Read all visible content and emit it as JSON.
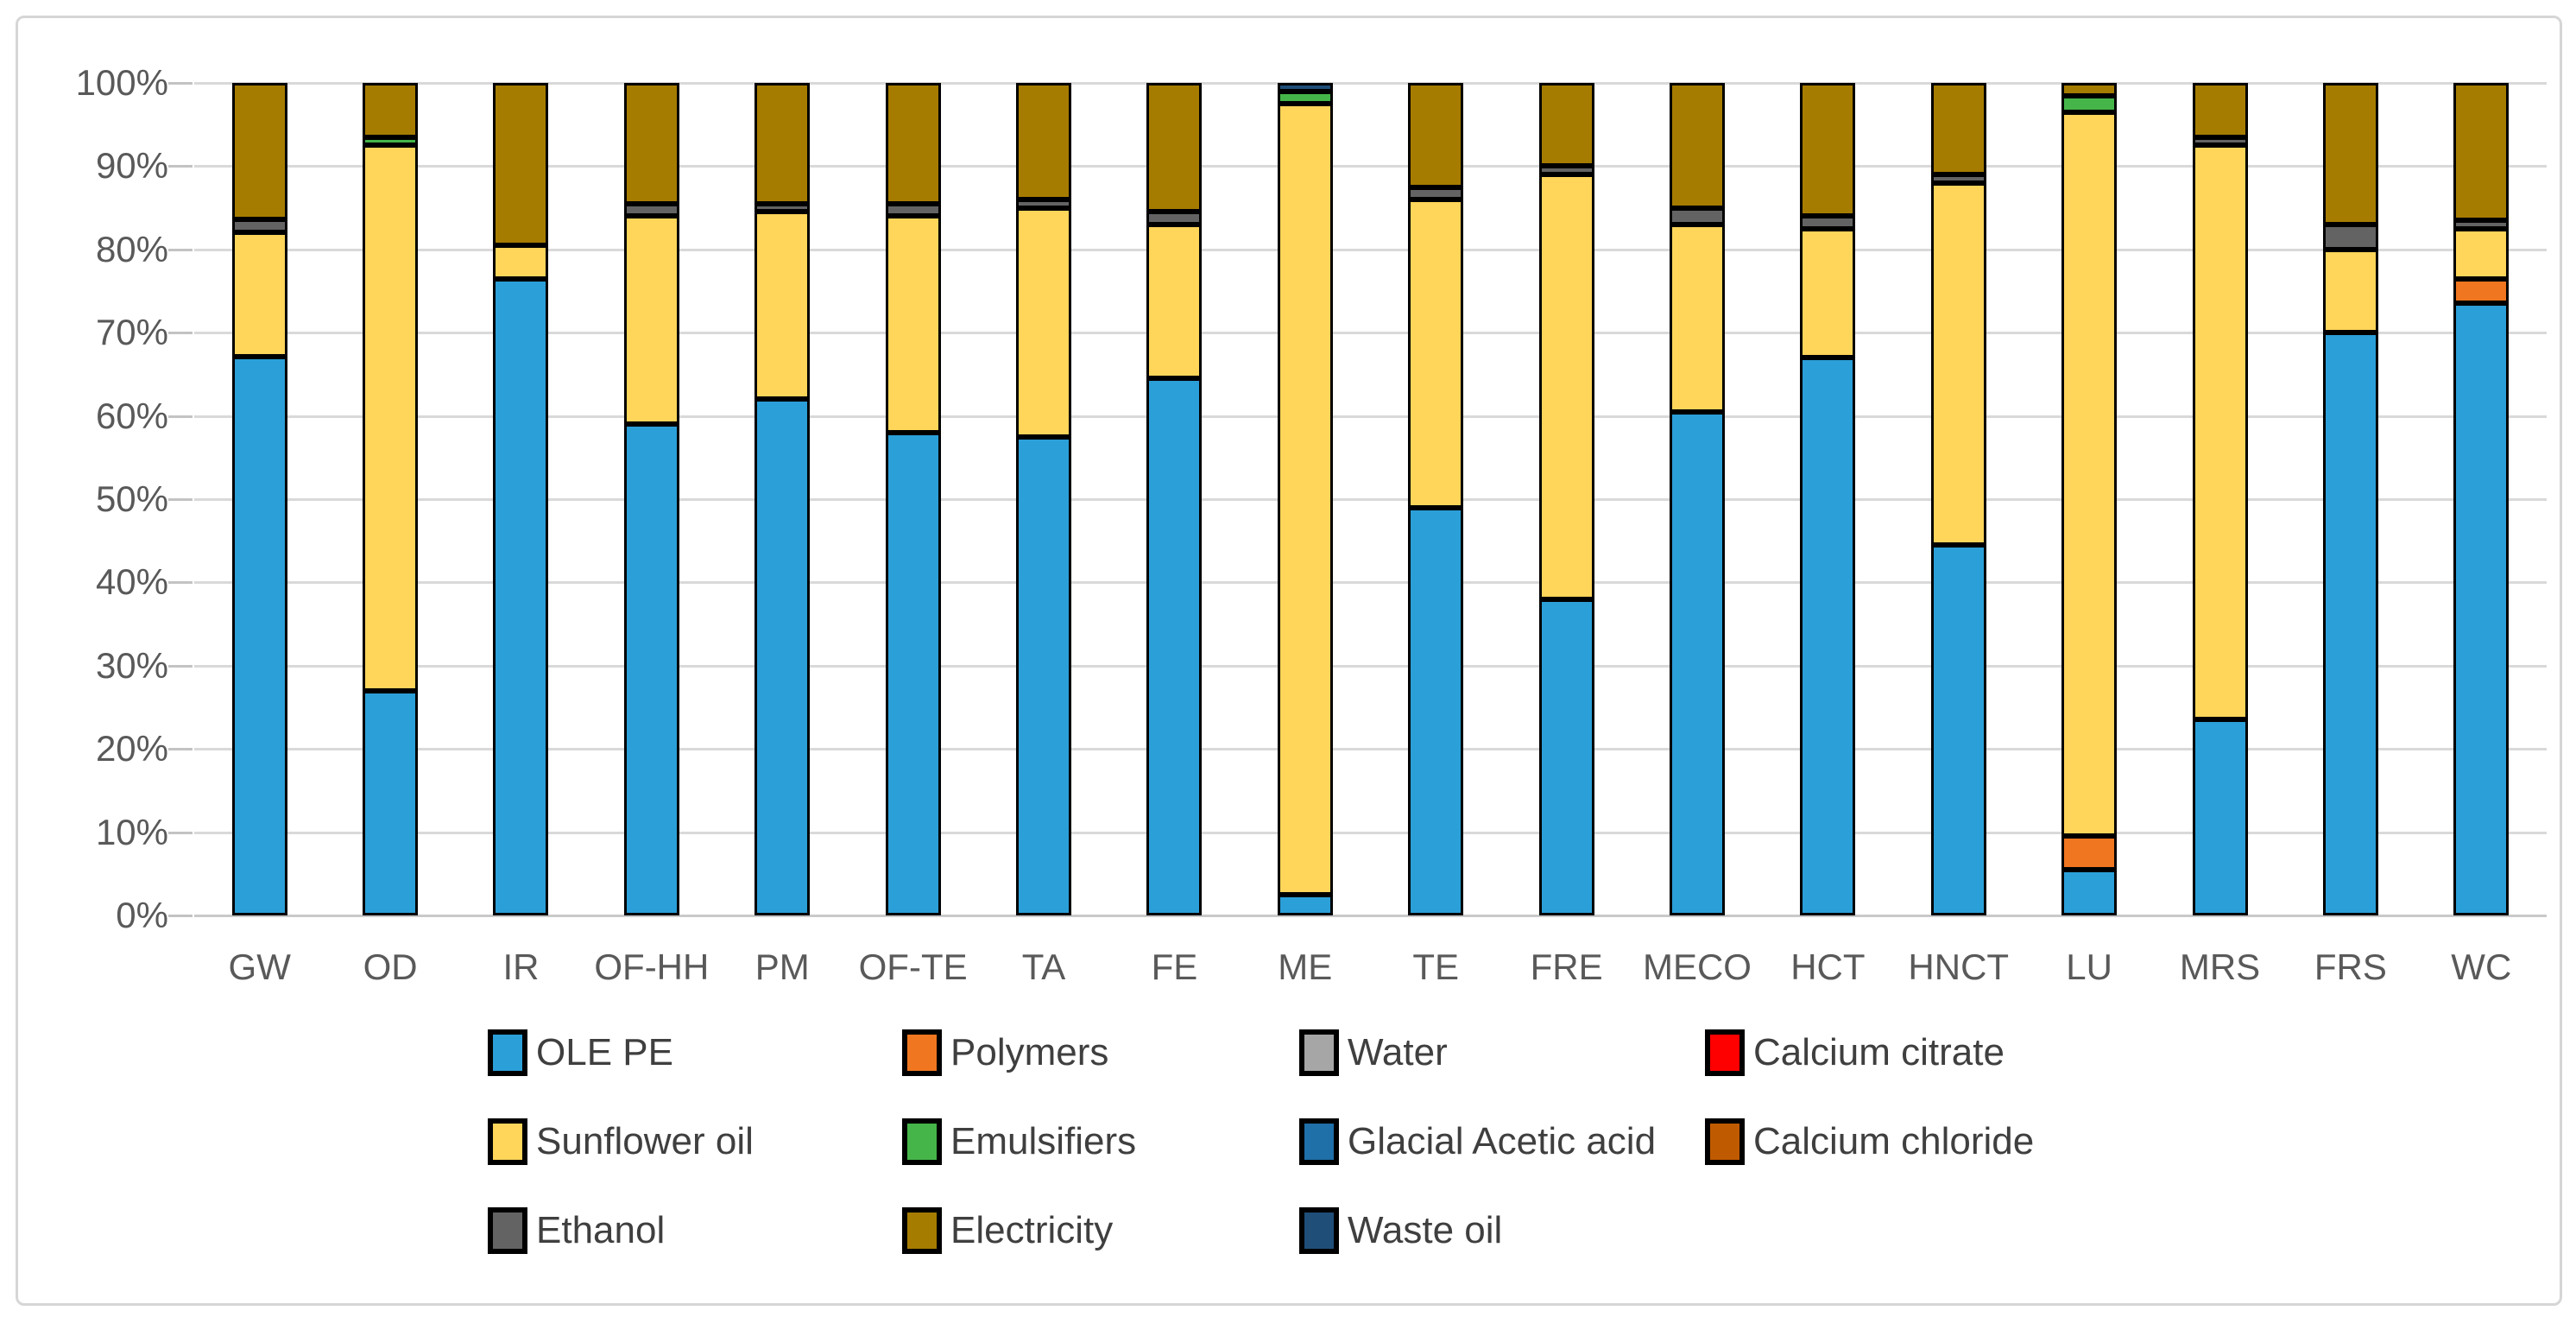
{
  "chart_data": {
    "type": "bar",
    "stacked": true,
    "stacked_100_percent": true,
    "title": "",
    "xlabel": "",
    "ylabel": "",
    "ylim": [
      0,
      100
    ],
    "y_tick_labels": [
      "0%",
      "10%",
      "20%",
      "30%",
      "40%",
      "50%",
      "60%",
      "70%",
      "80%",
      "90%",
      "100%"
    ],
    "grid": true,
    "legend_position": "bottom",
    "categories": [
      "GW",
      "OD",
      "IR",
      "OF-HH",
      "PM",
      "OF-TE",
      "TA",
      "FE",
      "ME",
      "TE",
      "FRE",
      "MECO",
      "HCT",
      "HNCT",
      "LU",
      "MRS",
      "FRS",
      "WC"
    ],
    "series": [
      {
        "name": "OLE PE",
        "color": "#2B9FD8",
        "values": [
          67.5,
          27,
          76.5,
          59,
          62,
          58,
          57.5,
          64.5,
          2.5,
          49,
          38,
          60.5,
          67,
          44.5,
          5.5,
          23.5,
          70,
          73.5
        ]
      },
      {
        "name": "Polymers",
        "color": "#F0761F",
        "values": [
          0,
          0,
          0,
          0,
          0,
          0,
          0,
          0,
          0,
          0,
          0,
          0,
          0,
          0,
          4,
          0,
          0,
          3
        ]
      },
      {
        "name": "Water",
        "color": "#A6A6A6",
        "values": [
          0,
          0,
          0,
          0,
          0,
          0,
          0,
          0,
          0,
          0,
          0,
          0,
          0,
          0,
          0,
          0,
          0,
          0
        ]
      },
      {
        "name": "Calcium citrate",
        "color": "#FF0000",
        "values": [
          0,
          0,
          0,
          0,
          0,
          0,
          0,
          0,
          0,
          0,
          0,
          0,
          0,
          0,
          0,
          0,
          0,
          0
        ]
      },
      {
        "name": "Sunflower oil",
        "color": "#FFD55A",
        "values": [
          15,
          65.5,
          4,
          25,
          22.5,
          26,
          27.5,
          18.5,
          95,
          37,
          51,
          22.5,
          15.5,
          43.5,
          87,
          69,
          10,
          6
        ]
      },
      {
        "name": "Emulsifiers",
        "color": "#45B549",
        "values": [
          0,
          1,
          0,
          0,
          0,
          0,
          0,
          0,
          1.5,
          0,
          0,
          0,
          0,
          0,
          2,
          0,
          0,
          0
        ]
      },
      {
        "name": "Glacial Acetic acid",
        "color": "#1F6FA8",
        "values": [
          0,
          0,
          0,
          0,
          0,
          0,
          0,
          0,
          0,
          0,
          0,
          0,
          0,
          0,
          0,
          0,
          0,
          0
        ]
      },
      {
        "name": "Calcium chloride",
        "color": "#C05A00",
        "values": [
          0,
          0,
          0,
          0,
          0,
          0,
          0,
          0,
          0,
          0,
          0,
          0,
          0,
          0,
          0,
          0,
          0,
          0
        ]
      },
      {
        "name": "Ethanol",
        "color": "#636363",
        "values": [
          1.5,
          0,
          0,
          1.5,
          1,
          1.5,
          1,
          1.5,
          0,
          1.5,
          1,
          2,
          1.5,
          1,
          0,
          1,
          3,
          1
        ]
      },
      {
        "name": "Electricity",
        "color": "#A67C00",
        "values": [
          16.5,
          6.5,
          19.5,
          14.5,
          14.5,
          14.5,
          14,
          15.5,
          0,
          12.5,
          10,
          15,
          16,
          11,
          1.5,
          6.5,
          17,
          16.5
        ]
      },
      {
        "name": "Waste oil",
        "color": "#1F4E79",
        "values": [
          0,
          0,
          0,
          0,
          0,
          0,
          0,
          0,
          1,
          0,
          0,
          0,
          0,
          0,
          0,
          0,
          0,
          0
        ]
      }
    ],
    "legend_order": [
      "OLE PE",
      "Polymers",
      "Water",
      "Calcium citrate",
      "Sunflower oil",
      "Emulsifiers",
      "Glacial Acetic acid",
      "Calcium chloride",
      "Ethanol",
      "Electricity",
      "Waste oil"
    ]
  }
}
